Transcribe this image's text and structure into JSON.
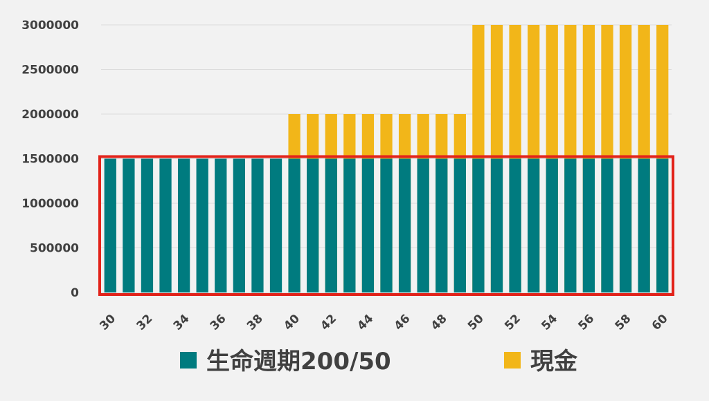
{
  "chart_data": {
    "type": "bar",
    "stacked": false,
    "grouping": "overlapped",
    "x": [
      30,
      31,
      32,
      33,
      34,
      35,
      36,
      37,
      38,
      39,
      40,
      41,
      42,
      43,
      44,
      45,
      46,
      47,
      48,
      49,
      50,
      51,
      52,
      53,
      54,
      55,
      56,
      57,
      58,
      59,
      60
    ],
    "x_tick_labels": [
      "30",
      "32",
      "34",
      "36",
      "38",
      "40",
      "42",
      "44",
      "46",
      "48",
      "50",
      "52",
      "54",
      "56",
      "58",
      "60"
    ],
    "series": [
      {
        "name": "生命週期200/50",
        "color": "#007b7f",
        "values": [
          1500000,
          1500000,
          1500000,
          1500000,
          1500000,
          1500000,
          1500000,
          1500000,
          1500000,
          1500000,
          1500000,
          1500000,
          1500000,
          1500000,
          1500000,
          1500000,
          1500000,
          1500000,
          1500000,
          1500000,
          1500000,
          1500000,
          1500000,
          1500000,
          1500000,
          1500000,
          1500000,
          1500000,
          1500000,
          1500000,
          1500000
        ]
      },
      {
        "name": "現金",
        "color": "#f2b619",
        "values": [
          0,
          0,
          0,
          0,
          0,
          0,
          0,
          0,
          0,
          0,
          2000000,
          2000000,
          2000000,
          2000000,
          2000000,
          2000000,
          2000000,
          2000000,
          2000000,
          2000000,
          3000000,
          3000000,
          3000000,
          3000000,
          3000000,
          3000000,
          3000000,
          3000000,
          3000000,
          3000000,
          3000000
        ]
      }
    ],
    "y_ticks": [
      "0",
      "500000",
      "1000000",
      "1500000",
      "2000000",
      "2500000",
      "3000000"
    ],
    "ylim": [
      0,
      3000000
    ],
    "grid": true,
    "legend_position": "bottom",
    "highlight_box": {
      "y_range": [
        0,
        1500000
      ],
      "color": "#e2231a"
    }
  }
}
